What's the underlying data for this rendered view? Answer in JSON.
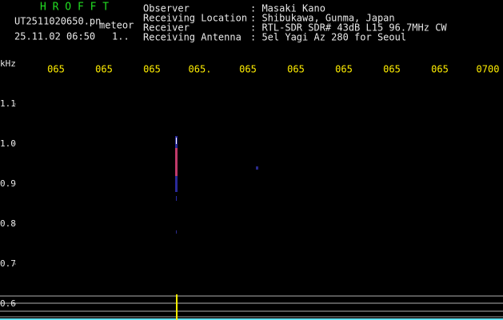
{
  "header": {
    "app_name": "H R O F F T",
    "file_name": "UT2511020650.pn",
    "event": "meteor",
    "timestamp": "25.11.02 06:50",
    "counter": "1..",
    "info": [
      {
        "label": "Observer",
        "value": ": Masaki Kano"
      },
      {
        "label": "Receiving Location",
        "value": ": Shibukawa, Gunma, Japan"
      },
      {
        "label": "Receiver",
        "value": ": RTL-SDR SDR# 43dB L15 96.7MHz CW"
      },
      {
        "label": "Receiving Antenna",
        "value": ": 5el Yagi Az 280 for Seoul"
      }
    ]
  },
  "spectrogram": {
    "y_unit": "kHz",
    "y_labels": [
      "1.1",
      "1.0",
      "0.9",
      "0.8",
      "0.7",
      "0.6"
    ],
    "x_labels": [
      "065",
      "065",
      "065",
      "065.",
      "065",
      "065",
      "065",
      "065",
      "065",
      "0700"
    ]
  }
}
